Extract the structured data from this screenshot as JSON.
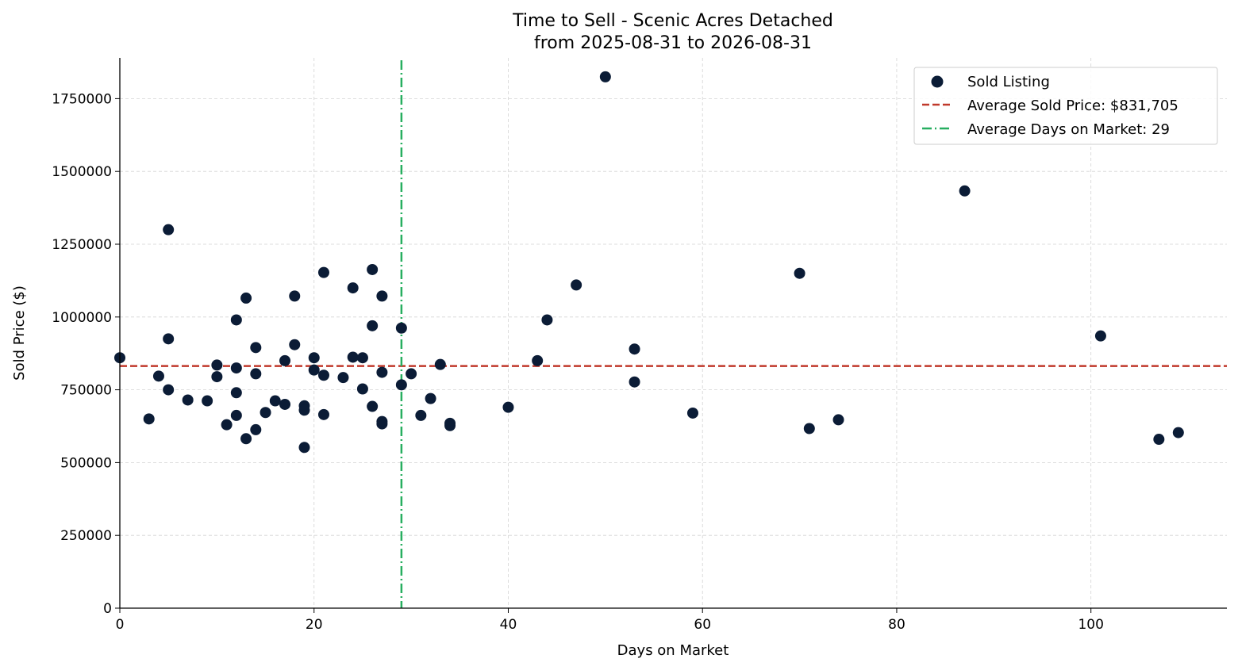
{
  "chart_data": {
    "type": "scatter",
    "title": "Time to Sell - Scenic Acres Detached",
    "subtitle": "from 2025-08-31 to 2026-08-31",
    "xlabel": "Days on Market",
    "ylabel": "Sold Price ($)",
    "xlim": [
      0,
      114
    ],
    "ylim": [
      0,
      1890000
    ],
    "x_ticks": [
      0,
      20,
      40,
      60,
      80,
      100
    ],
    "y_ticks": [
      0,
      250000,
      500000,
      750000,
      1000000,
      1250000,
      1500000,
      1750000
    ],
    "grid": true,
    "legend_position": "top-right",
    "colors": {
      "points": "#0b1c36",
      "avg_price": "#c0392b",
      "avg_days": "#27ae60"
    },
    "series": [
      {
        "name": "Sold Listing",
        "points": [
          [
            0,
            860000
          ],
          [
            3,
            650000
          ],
          [
            4,
            797000
          ],
          [
            5,
            1300000
          ],
          [
            5,
            925000
          ],
          [
            5,
            750000
          ],
          [
            7,
            715000
          ],
          [
            9,
            712000
          ],
          [
            10,
            835000
          ],
          [
            10,
            795000
          ],
          [
            11,
            630000
          ],
          [
            12,
            990000
          ],
          [
            12,
            825000
          ],
          [
            12,
            740000
          ],
          [
            12,
            662000
          ],
          [
            13,
            1065000
          ],
          [
            13,
            582000
          ],
          [
            14,
            895000
          ],
          [
            14,
            805000
          ],
          [
            14,
            613000
          ],
          [
            15,
            672000
          ],
          [
            16,
            712000
          ],
          [
            17,
            850000
          ],
          [
            17,
            700000
          ],
          [
            18,
            1072000
          ],
          [
            18,
            905000
          ],
          [
            19,
            695000
          ],
          [
            19,
            680000
          ],
          [
            19,
            552000
          ],
          [
            20,
            860000
          ],
          [
            20,
            818000
          ],
          [
            21,
            1153000
          ],
          [
            21,
            800000
          ],
          [
            21,
            665000
          ],
          [
            23,
            792000
          ],
          [
            24,
            1100000
          ],
          [
            24,
            862000
          ],
          [
            25,
            860000
          ],
          [
            25,
            753000
          ],
          [
            26,
            1163000
          ],
          [
            26,
            970000
          ],
          [
            26,
            693000
          ],
          [
            27,
            1072000
          ],
          [
            27,
            810000
          ],
          [
            27,
            641000
          ],
          [
            27,
            633000
          ],
          [
            29,
            962000
          ],
          [
            29,
            767000
          ],
          [
            30,
            805000
          ],
          [
            31,
            662000
          ],
          [
            32,
            720000
          ],
          [
            33,
            837000
          ],
          [
            34,
            635000
          ],
          [
            34,
            627000
          ],
          [
            40,
            690000
          ],
          [
            43,
            850000
          ],
          [
            44,
            990000
          ],
          [
            47,
            1110000
          ],
          [
            50,
            1825000
          ],
          [
            53,
            890000
          ],
          [
            53,
            777000
          ],
          [
            59,
            670000
          ],
          [
            70,
            1150000
          ],
          [
            71,
            617000
          ],
          [
            74,
            647000
          ],
          [
            87,
            1433000
          ],
          [
            101,
            935000
          ],
          [
            107,
            580000
          ],
          [
            109,
            603000
          ]
        ]
      }
    ],
    "reference_lines": [
      {
        "name": "Average Sold Price: $831,705",
        "orientation": "horizontal",
        "value": 831705,
        "style": "dashed"
      },
      {
        "name": "Average Days on Market: 29",
        "orientation": "vertical",
        "value": 29,
        "style": "dashdot"
      }
    ]
  }
}
